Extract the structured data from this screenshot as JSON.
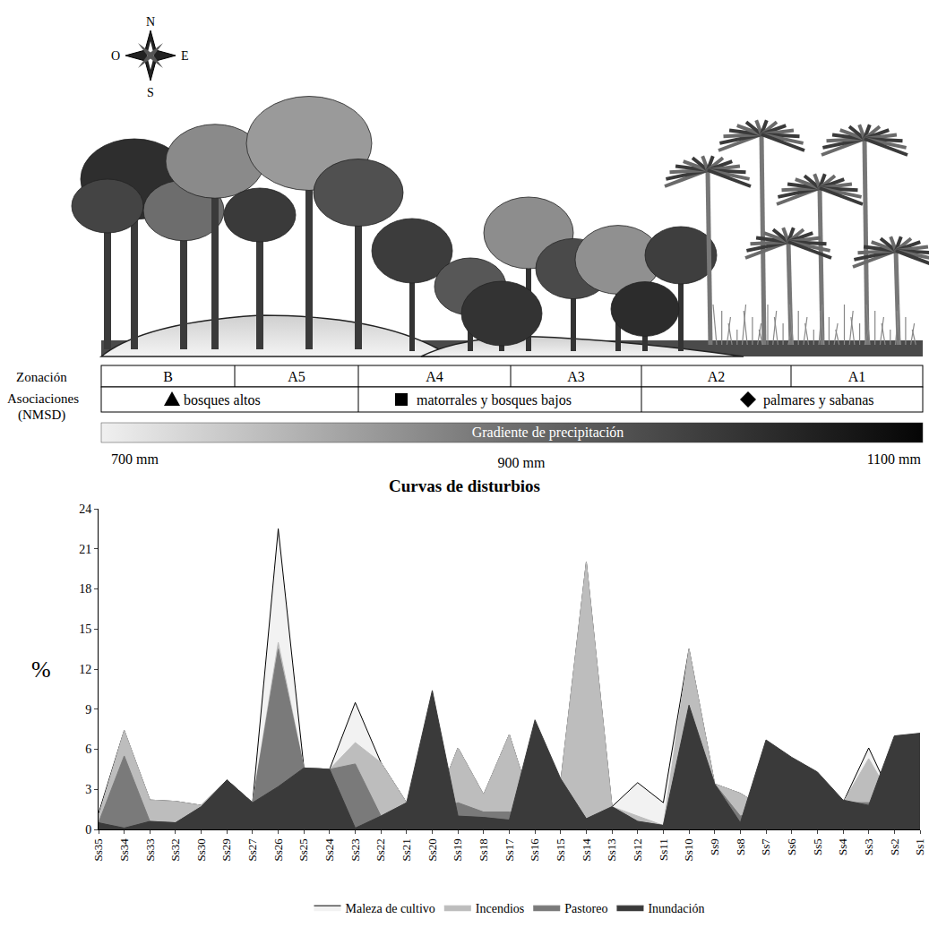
{
  "illustration": {
    "compass": {
      "north": "N",
      "east": "E",
      "south": "S",
      "west": "O"
    }
  },
  "zonation": {
    "label": "Zonación",
    "zones": [
      "B",
      "A5",
      "A4",
      "A3",
      "A2",
      "A1"
    ]
  },
  "associations": {
    "label": "Asociaciones (NMSD)",
    "groups": [
      {
        "marker": "triangle",
        "label": "bosques altos"
      },
      {
        "marker": "square",
        "label": "matorrales y bosques bajos"
      },
      {
        "marker": "diamond",
        "label": "palmares y sabanas"
      }
    ]
  },
  "precipitation": {
    "label": "Gradiente de precipitación",
    "ticks": [
      "700 mm",
      "900 mm",
      "1100 mm"
    ]
  },
  "chart_data": {
    "type": "area",
    "title": "Curvas de disturbios",
    "y_label": "%",
    "categories": [
      "Ss35",
      "Ss34",
      "Ss33",
      "Ss32",
      "Ss30",
      "Ss29",
      "Ss27",
      "Ss26",
      "Ss25",
      "Ss24",
      "Ss23",
      "Ss22",
      "Ss21",
      "Ss20",
      "Ss19",
      "Ss18",
      "Ss17",
      "Ss16",
      "Ss15",
      "Ss14",
      "Ss13",
      "Ss12",
      "Ss11",
      "Ss10",
      "Ss9",
      "Ss8",
      "Ss7",
      "Ss6",
      "Ss5",
      "Ss4",
      "Ss3",
      "Ss2",
      "Ss1"
    ],
    "series": [
      {
        "name": "Maleza de cultivo",
        "color": "#f2f2f2",
        "values": [
          1.2,
          7.4,
          2.2,
          2.1,
          1.8,
          3.7,
          2.0,
          22.5,
          4.6,
          4.5,
          9.5,
          5.0,
          2.0,
          1.2,
          6.1,
          2.6,
          7.1,
          1.0,
          3.5,
          20.0,
          1.7,
          3.5,
          2.0,
          13.5,
          3.4,
          2.7,
          1.5,
          1.5,
          1.5,
          2.0,
          6.1,
          2.0,
          2.0
        ]
      },
      {
        "name": "Incendios",
        "color": "#bdbdbd",
        "values": [
          1.0,
          7.4,
          2.2,
          2.1,
          1.8,
          3.7,
          2.0,
          14.0,
          4.6,
          4.5,
          6.5,
          5.0,
          2.0,
          1.2,
          6.1,
          2.6,
          7.1,
          1.0,
          3.5,
          20.0,
          1.7,
          1.0,
          0.3,
          13.5,
          3.4,
          2.7,
          1.5,
          1.5,
          1.5,
          2.0,
          5.3,
          2.0,
          2.0
        ]
      },
      {
        "name": "Pastoreo",
        "color": "#7a7a7a",
        "values": [
          0.5,
          5.5,
          0.6,
          0.5,
          1.7,
          3.7,
          2.0,
          13.5,
          4.6,
          4.5,
          4.9,
          1.0,
          2.0,
          1.2,
          2.0,
          1.3,
          1.3,
          1.0,
          3.5,
          0.8,
          1.7,
          0.6,
          0.3,
          9.0,
          3.4,
          1.0,
          1.5,
          1.5,
          1.5,
          2.0,
          2.0,
          2.0,
          2.0
        ]
      },
      {
        "name": "Inundación",
        "color": "#3a3a3a",
        "values": [
          0.5,
          0.1,
          0.6,
          0.5,
          1.7,
          3.7,
          2.0,
          3.2,
          4.6,
          4.5,
          0.1,
          1.0,
          2.0,
          10.4,
          1.0,
          0.9,
          0.7,
          8.2,
          3.8,
          0.8,
          1.7,
          0.6,
          0.3,
          9.3,
          3.4,
          0.5,
          6.7,
          5.4,
          4.3,
          2.2,
          1.8,
          7.0,
          7.2
        ]
      }
    ],
    "ylim": [
      0,
      24
    ],
    "yticks": [
      0,
      3,
      6,
      9,
      12,
      15,
      18,
      21,
      24
    ],
    "grid": false,
    "legend": "bottom",
    "stacked": false
  }
}
